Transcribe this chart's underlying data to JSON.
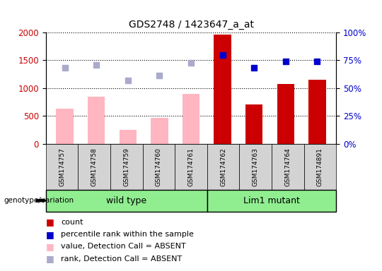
{
  "title": "GDS2748 / 1423647_a_at",
  "samples": [
    "GSM174757",
    "GSM174758",
    "GSM174759",
    "GSM174760",
    "GSM174761",
    "GSM174762",
    "GSM174763",
    "GSM174764",
    "GSM174891"
  ],
  "count_values": [
    null,
    null,
    null,
    null,
    null,
    1960,
    700,
    1070,
    1150
  ],
  "count_absent": [
    630,
    850,
    250,
    460,
    900,
    null,
    null,
    null,
    null
  ],
  "percentile_values": [
    null,
    null,
    null,
    null,
    null,
    80,
    68,
    74,
    74
  ],
  "percentile_absent": [
    68,
    71,
    57,
    61,
    73,
    null,
    null,
    null,
    null
  ],
  "ylim_left": [
    0,
    2000
  ],
  "ylim_right": [
    0,
    100
  ],
  "yticks_left": [
    0,
    500,
    1000,
    1500,
    2000
  ],
  "yticks_right": [
    0,
    25,
    50,
    75,
    100
  ],
  "ytick_labels_right": [
    "0%",
    "25%",
    "50%",
    "75%",
    "100%"
  ],
  "bar_width": 0.55,
  "count_color": "#CC0000",
  "count_absent_color": "#FFB6C1",
  "percentile_color": "#0000CC",
  "percentile_absent_color": "#AAAACC",
  "wild_type_samples": 5,
  "lim1_samples": 4,
  "group_green": "#90EE90",
  "gray_box": "#D3D3D3",
  "genotype_label": "genotype/variation",
  "legend_items": [
    {
      "color": "#CC0000",
      "label": "count"
    },
    {
      "color": "#0000CC",
      "label": "percentile rank within the sample"
    },
    {
      "color": "#FFB6C1",
      "label": "value, Detection Call = ABSENT"
    },
    {
      "color": "#AAAACC",
      "label": "rank, Detection Call = ABSENT"
    }
  ]
}
